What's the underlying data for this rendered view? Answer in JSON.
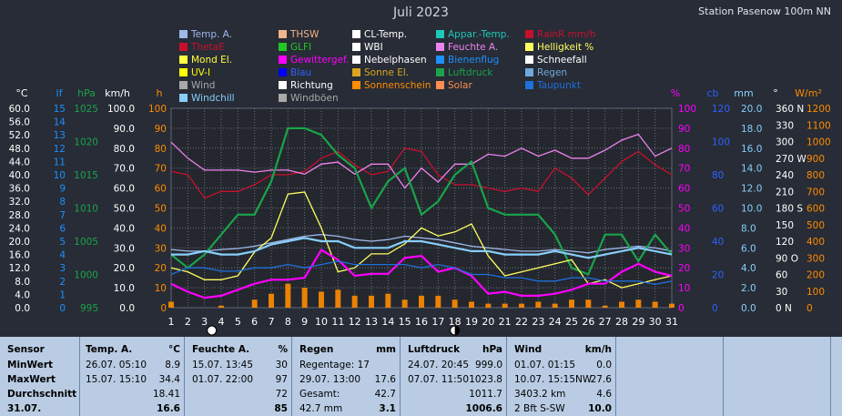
{
  "header": {
    "title": "Juli 2023",
    "station": "Station Pasenow 100m NN"
  },
  "legend": [
    {
      "label": "Temp. A.",
      "color": "#9fb8ea"
    },
    {
      "label": "THSW",
      "color": "#f4b38a"
    },
    {
      "label": "CL-Temp.",
      "color": "#ffffff"
    },
    {
      "label": "Appar.-Temp.",
      "color": "#1ec8b8"
    },
    {
      "label": "RainR mm/h",
      "color": "#c8102e"
    },
    {
      "label": "ThetaE",
      "color": "#c8102e"
    },
    {
      "label": "GLFI",
      "color": "#22c822"
    },
    {
      "label": "WBI",
      "color": "#ffffff"
    },
    {
      "label": "Feuchte A.",
      "color": "#ee82ee"
    },
    {
      "label": "Helligkeit %",
      "color": "#ffff60"
    },
    {
      "label": "Mond El.",
      "color": "#ffff40"
    },
    {
      "label": "Gewittergef.",
      "color": "#ff00ff"
    },
    {
      "label": "Nebelphasen",
      "color": "#ffffff"
    },
    {
      "label": "Bienenflug",
      "color": "#1e90ff"
    },
    {
      "label": "Schneefall",
      "color": "#ffffff"
    },
    {
      "label": "UV-I",
      "color": "#ffff00"
    },
    {
      "label": "Blau",
      "color": "#0000ff"
    },
    {
      "label": "Sonne El.",
      "color": "#daa520"
    },
    {
      "label": "Luftdruck",
      "color": "#1aa34a"
    },
    {
      "label": "Regen",
      "color": "#6fa8dc"
    },
    {
      "label": "Wind",
      "color": "#a9a9a9"
    },
    {
      "label": "Richtung",
      "color": "#ffffff"
    },
    {
      "label": "Sonnenschein",
      "color": "#ff8c00"
    },
    {
      "label": "Solar",
      "color": "#ff8c50"
    },
    {
      "label": "Taupunkt",
      "color": "#1e70dd"
    },
    {
      "label": "Windchill",
      "color": "#87cefa"
    },
    {
      "label": "Windböen",
      "color": "#a9a9a9"
    }
  ],
  "axes": {
    "temp": {
      "unit": "°C",
      "ticks": [
        "60.0",
        "56.0",
        "52.0",
        "48.0",
        "44.0",
        "40.0",
        "36.0",
        "32.0",
        "28.0",
        "24.0",
        "20.0",
        "16.0",
        "12.0",
        "8.0",
        "4.0",
        "0.0"
      ]
    },
    "lf": {
      "unit": "lf",
      "ticks": [
        "15",
        "14",
        "13",
        "12",
        "11",
        "10",
        "9",
        "8",
        "7",
        "6",
        "5",
        "4",
        "3",
        "2",
        "1",
        "0"
      ]
    },
    "hpa": {
      "unit": "hPa",
      "ticks": [
        "1025",
        "1020",
        "1015",
        "1010",
        "1005",
        "1000",
        "995"
      ]
    },
    "kmh": {
      "unit": "km/h",
      "ticks": [
        "100.0",
        "90.0",
        "80.0",
        "70.0",
        "60.0",
        "50.0",
        "40.0",
        "30.0",
        "20.0",
        "10.0",
        "0.0"
      ]
    },
    "h": {
      "unit": "h",
      "ticks": [
        "100",
        "90",
        "80",
        "70",
        "60",
        "50",
        "40",
        "30",
        "20",
        "10",
        "0"
      ]
    },
    "pct": {
      "unit": "%",
      "ticks": [
        "100",
        "90",
        "80",
        "70",
        "60",
        "50",
        "40",
        "30",
        "20",
        "10",
        "0"
      ]
    },
    "cb": {
      "unit": "cb",
      "ticks": [
        "120",
        "100",
        "80",
        "60",
        "40",
        "20",
        "0"
      ]
    },
    "mm": {
      "unit": "mm",
      "ticks": [
        "20.0",
        "18.0",
        "16.0",
        "14.0",
        "12.0",
        "10.0",
        "8.0",
        "6.0",
        "4.0",
        "2.0",
        "0.0"
      ]
    },
    "deg": {
      "unit": "°",
      "ticks": [
        "360 N",
        "330",
        "300",
        "270 W",
        "240",
        "210",
        "180 S",
        "150",
        "120",
        "90  O",
        "60",
        "30",
        "0   N"
      ]
    },
    "wm2": {
      "unit": "W/m²",
      "ticks": [
        "1200",
        "1100",
        "1000",
        "900",
        "800",
        "700",
        "600",
        "500",
        "400",
        "300",
        "200",
        "100",
        "0"
      ]
    },
    "days": [
      "1",
      "2",
      "3",
      "4",
      "5",
      "6",
      "7",
      "8",
      "9",
      "10",
      "11",
      "12",
      "13",
      "14",
      "15",
      "16",
      "17",
      "18",
      "19",
      "20",
      "21",
      "22",
      "23",
      "24",
      "25",
      "26",
      "27",
      "28",
      "29",
      "30",
      "31"
    ]
  },
  "chart_data": {
    "type": "line",
    "x": [
      1,
      2,
      3,
      4,
      5,
      6,
      7,
      8,
      9,
      10,
      11,
      12,
      13,
      14,
      15,
      16,
      17,
      18,
      19,
      20,
      21,
      22,
      23,
      24,
      25,
      26,
      27,
      28,
      29,
      30,
      31
    ],
    "series": [
      {
        "name": "Temp. A.",
        "color": "#9fb8ea",
        "axis": "temp",
        "values": [
          17.5,
          17.0,
          17.0,
          17.5,
          17.8,
          18.5,
          19.5,
          20.5,
          21.5,
          22.0,
          21.5,
          20.5,
          20.0,
          20.5,
          21.5,
          21.0,
          20.5,
          19.5,
          18.5,
          18.0,
          17.5,
          17.0,
          17.0,
          17.5,
          17.0,
          16.5,
          17.5,
          18.0,
          18.5,
          18.0,
          17.0
        ]
      },
      {
        "name": "ThetaE",
        "color": "#c8102e",
        "axis": "temp",
        "values": [
          41,
          40,
          33,
          35,
          35,
          37,
          40,
          40,
          41,
          45,
          47,
          43,
          40,
          41,
          48,
          47,
          40,
          37,
          37,
          36,
          35,
          36,
          35,
          42,
          39,
          34,
          39,
          44,
          47,
          43,
          40
        ]
      },
      {
        "name": "Feuchte A.",
        "color": "#ee82ee",
        "axis": "pct",
        "values": [
          83,
          75,
          69,
          69,
          69,
          68,
          69,
          69,
          67,
          72,
          73,
          67,
          72,
          72,
          60,
          70,
          63,
          72,
          72,
          77,
          76,
          80,
          76,
          79,
          75,
          75,
          79,
          84,
          87,
          76,
          80
        ]
      },
      {
        "name": "Luftdruck",
        "color": "#1aa34a",
        "axis": "hpa",
        "values": [
          1003,
          1001,
          1003,
          1006,
          1009,
          1009,
          1014,
          1022,
          1022,
          1021,
          1018,
          1016,
          1010,
          1014,
          1016,
          1009,
          1011,
          1015,
          1017,
          1010,
          1009,
          1009,
          1009,
          1006,
          1001,
          1000,
          1006,
          1006,
          1002,
          1006,
          1003
        ]
      },
      {
        "name": "Helligkeit %",
        "color": "#ffff60",
        "axis": "pct",
        "values": [
          20,
          18,
          14,
          14,
          16,
          28,
          35,
          57,
          58,
          40,
          18,
          20,
          27,
          27,
          32,
          40,
          36,
          38,
          42,
          26,
          16,
          18,
          20,
          22,
          24,
          12,
          14,
          10,
          12,
          14,
          16
        ]
      },
      {
        "name": "Gewittergef.",
        "color": "#ff00ff",
        "axis": "pct",
        "values": [
          12,
          8,
          5,
          6,
          9,
          12,
          14,
          14,
          15,
          29,
          24,
          16,
          17,
          17,
          25,
          26,
          18,
          20,
          16,
          7,
          8,
          6,
          6,
          7,
          9,
          12,
          12,
          18,
          22,
          18,
          16
        ]
      },
      {
        "name": "Taupunkt",
        "color": "#1e70dd",
        "axis": "temp",
        "values": [
          10,
          12,
          12,
          11,
          11,
          12,
          12,
          13,
          12,
          13,
          14,
          13,
          13,
          13,
          13,
          12,
          13,
          12,
          10,
          10,
          9,
          9,
          8,
          8,
          9,
          9,
          8,
          8,
          8,
          7,
          8
        ]
      },
      {
        "name": "Windchill",
        "color": "#87cefa",
        "axis": "temp",
        "values": [
          16,
          16,
          17,
          16,
          16,
          17,
          19,
          20,
          21,
          20,
          20,
          18,
          18,
          18,
          20,
          20,
          19,
          18,
          17,
          17,
          16,
          16,
          16,
          17,
          16,
          15,
          16,
          17,
          18,
          17,
          16
        ]
      },
      {
        "name": "Sonnenschein",
        "color": "#ff8c00",
        "axis": "h",
        "values": [
          3,
          0,
          0,
          1,
          0,
          4,
          7,
          12,
          10,
          8,
          9,
          6,
          6,
          7,
          4,
          6,
          6,
          4,
          3,
          2,
          2,
          2,
          3,
          2,
          4,
          4,
          1,
          3,
          4,
          3,
          2
        ]
      }
    ]
  },
  "stats": {
    "sensor": {
      "title": "Sensor",
      "rows": [
        "MinWert",
        "MaxWert",
        "Durchschnitt",
        "31.07."
      ]
    },
    "temp": {
      "title": "Temp. A.",
      "unit": "°C",
      "rows": [
        [
          "26.07.  05:10",
          "8.9"
        ],
        [
          "15.07.  15:10",
          "34.4"
        ],
        [
          "",
          "18.41"
        ],
        [
          "",
          "16.6"
        ]
      ]
    },
    "feuchte": {
      "title": "Feuchte A.",
      "unit": "%",
      "rows": [
        [
          "15.07.  13:45",
          "30"
        ],
        [
          "01.07.  22:00",
          "97"
        ],
        [
          "",
          "72"
        ],
        [
          "",
          "85"
        ]
      ]
    },
    "regen": {
      "title": "Regen",
      "unit": "mm",
      "rows": [
        [
          "Regentage: 17",
          ""
        ],
        [
          "29.07.  13:00",
          "17.6"
        ],
        [
          "Gesamt:",
          "42.7"
        ],
        [
          " 42.7 mm",
          "3.1"
        ]
      ]
    },
    "luftdruck": {
      "title": "Luftdruck",
      "unit": "hPa",
      "rows": [
        [
          "24.07.  20:45",
          "999.0"
        ],
        [
          "07.07.  11:50",
          "1023.8"
        ],
        [
          "",
          "1011.7"
        ],
        [
          "",
          "1006.6"
        ]
      ]
    },
    "wind": {
      "title": "Wind",
      "unit": "km/h",
      "rows": [
        [
          "01.07.  01:15",
          "0.0"
        ],
        [
          "10.07.  15:15NW",
          "27.6"
        ],
        [
          "3403.2 km",
          "4.6"
        ],
        [
          " 2 Bft S-SW",
          "10.0"
        ]
      ]
    }
  }
}
